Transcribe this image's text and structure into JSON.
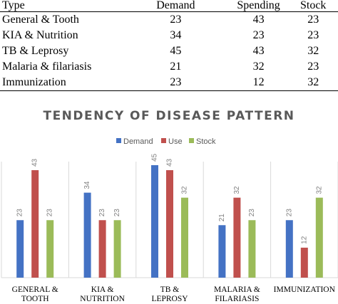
{
  "table": {
    "headers": [
      "Type",
      "Demand",
      "Spending",
      "Stock"
    ],
    "rows": [
      [
        "General & Tooth",
        "23",
        "43",
        "23"
      ],
      [
        "KIA & Nutrition",
        "34",
        "23",
        "23"
      ],
      [
        "TB & Leprosy",
        "45",
        "43",
        "32"
      ],
      [
        "Malaria & filariasis",
        "21",
        "32",
        "23"
      ],
      [
        "Immunization",
        "23",
        "12",
        "32"
      ]
    ]
  },
  "chart_data": {
    "type": "bar",
    "title": "TENDENCY OF DISEASE PATTERN",
    "categories": [
      [
        "GENERAL &",
        "TOOTH"
      ],
      [
        "KIA &",
        "NUTRITION"
      ],
      [
        "TB &",
        "LEPROSY"
      ],
      [
        "MALARIA &",
        "FILARIASIS"
      ],
      [
        "IMMUNIZATION"
      ]
    ],
    "series": [
      {
        "name": "Demand",
        "values": [
          23,
          34,
          45,
          21,
          23
        ]
      },
      {
        "name": "Use",
        "values": [
          43,
          23,
          43,
          32,
          12
        ]
      },
      {
        "name": "Stock",
        "values": [
          23,
          23,
          32,
          23,
          32
        ]
      }
    ],
    "ylim": [
      0,
      50
    ],
    "grid": false,
    "legend_position": "top"
  },
  "colors": {
    "Demand": "#4472c4",
    "Use": "#c0504d",
    "Stock": "#9bbb59"
  }
}
